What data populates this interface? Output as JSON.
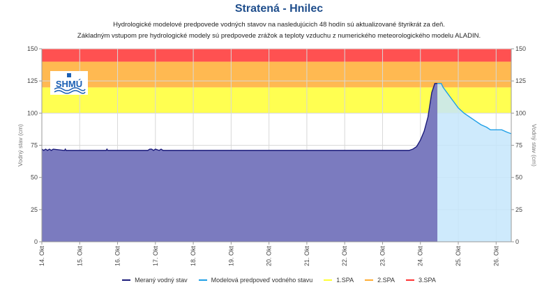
{
  "title": "Stratená - Hnilec",
  "subtitle_line1": "Hydrologické modelové predpovede vodných stavov na nasledujúcich 48 hodín sú aktualizované štyrikrát za deň.",
  "subtitle_line2": "Základným vstupom pre hydrologické modely sú predpovede zrážok a teploty vzduchu z numerického meteorologického modelu ALADIN.",
  "logo_text": "SHMÚ",
  "chart_data": {
    "type": "area",
    "ylabel_left": "Vodný stav (cm)",
    "ylabel_right": "Vodný stav (cm)",
    "ylim": [
      0,
      150
    ],
    "y_ticks": [
      0,
      25,
      50,
      75,
      100,
      125,
      150
    ],
    "x_ticks": [
      "14. Okt",
      "15. Okt",
      "16. Okt",
      "17. Okt",
      "18. Okt",
      "19. Okt",
      "20. Okt",
      "21. Okt",
      "22. Okt",
      "23. Okt",
      "24. Okt",
      "25. Okt",
      "26. Okt"
    ],
    "x_range_days": [
      0,
      12.4
    ],
    "grid": true,
    "legend_position": "bottom",
    "thresholds": [
      {
        "name": "1.SPA",
        "from": 100,
        "to": 120,
        "color": "#ffff33"
      },
      {
        "name": "2.SPA",
        "from": 120,
        "to": 140,
        "color": "#ffad33"
      },
      {
        "name": "3.SPA",
        "from": 140,
        "to": 150,
        "color": "#ff3333"
      }
    ],
    "series": [
      {
        "name": "Meraný vodný stav",
        "color": "#1a1a7a",
        "fill": "#7b7bbf",
        "points": [
          [
            0,
            72
          ],
          [
            0.05,
            71
          ],
          [
            0.1,
            72
          ],
          [
            0.15,
            71
          ],
          [
            0.2,
            72
          ],
          [
            0.25,
            71
          ],
          [
            0.3,
            72
          ],
          [
            0.6,
            71
          ],
          [
            0.62,
            72
          ],
          [
            0.64,
            71
          ],
          [
            1.7,
            71
          ],
          [
            1.72,
            72
          ],
          [
            1.74,
            71
          ],
          [
            2.8,
            71
          ],
          [
            2.85,
            72
          ],
          [
            2.9,
            72
          ],
          [
            2.95,
            71
          ],
          [
            3.0,
            72
          ],
          [
            3.1,
            71
          ],
          [
            3.15,
            72
          ],
          [
            3.2,
            71
          ],
          [
            9.7,
            71
          ],
          [
            9.8,
            72
          ],
          [
            9.9,
            74
          ],
          [
            10.0,
            79
          ],
          [
            10.1,
            86
          ],
          [
            10.2,
            97
          ],
          [
            10.3,
            116
          ],
          [
            10.38,
            123
          ],
          [
            10.45,
            123
          ]
        ]
      },
      {
        "name": "Modelová predpoveď vodného stavu",
        "color": "#1e9fe6",
        "fill": "#c6e6fb",
        "points": [
          [
            10.45,
            123
          ],
          [
            10.55,
            123
          ],
          [
            10.6,
            120
          ],
          [
            10.7,
            116
          ],
          [
            10.85,
            110
          ],
          [
            11.0,
            104
          ],
          [
            11.15,
            100
          ],
          [
            11.3,
            97
          ],
          [
            11.45,
            94
          ],
          [
            11.6,
            91
          ],
          [
            11.75,
            89
          ],
          [
            11.85,
            87
          ],
          [
            12.0,
            87
          ],
          [
            12.15,
            87
          ],
          [
            12.3,
            85
          ],
          [
            12.4,
            84
          ]
        ]
      }
    ]
  },
  "legend": {
    "measured": "Meraný vodný stav",
    "forecast": "Modelová predpoveď vodného stavu",
    "spa1": "1.SPA",
    "spa2": "2.SPA",
    "spa3": "3.SPA"
  }
}
